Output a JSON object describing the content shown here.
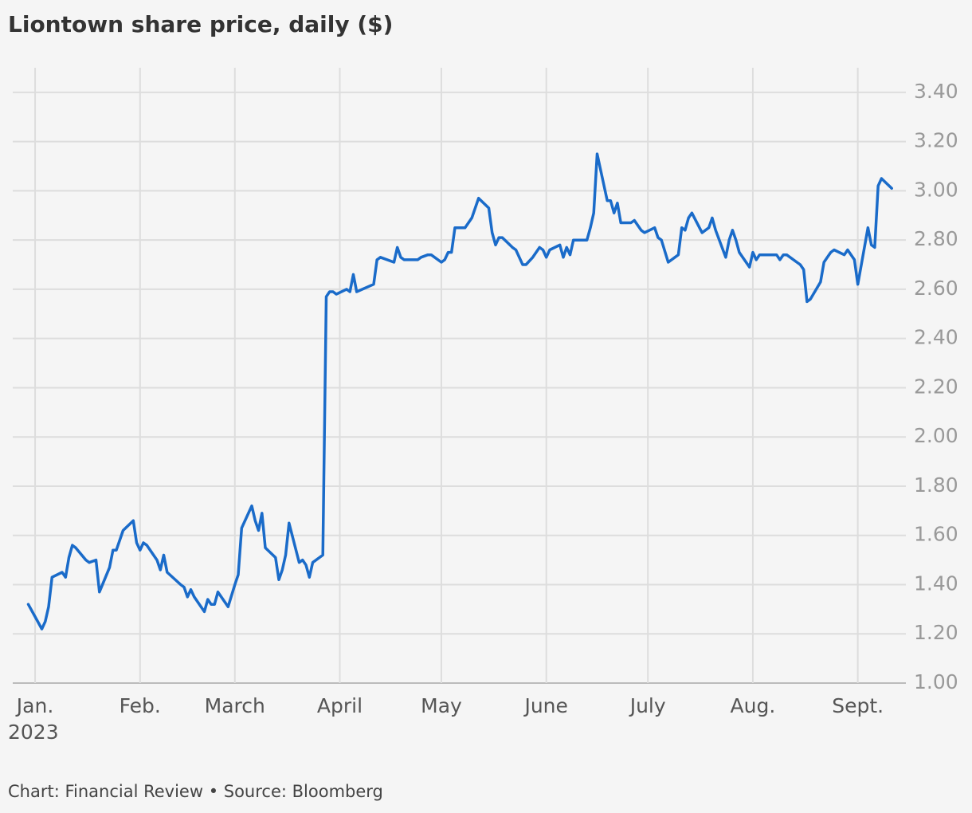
{
  "chart_data": {
    "type": "line",
    "title": "Liontown share price, daily ($)",
    "source": "Chart: Financial Review • Source: Bloomberg",
    "year_label": "2023",
    "color": "#1a6bc9",
    "grid": true,
    "y_axis_side": "right",
    "xlim": [
      -5.6,
      258.2
    ],
    "xticks": [
      {
        "value": 1,
        "label": "Jan."
      },
      {
        "value": 32,
        "label": "Feb."
      },
      {
        "value": 60,
        "label": "March"
      },
      {
        "value": 91,
        "label": "April"
      },
      {
        "value": 121,
        "label": "May"
      },
      {
        "value": 152,
        "label": "June"
      },
      {
        "value": 182,
        "label": "July"
      },
      {
        "value": 213,
        "label": "Aug."
      },
      {
        "value": 244,
        "label": "Sept."
      }
    ],
    "ylim": [
      1.0,
      3.5
    ],
    "yticks": [
      {
        "value": 1.0,
        "label": "1.00"
      },
      {
        "value": 1.2,
        "label": "1.20"
      },
      {
        "value": 1.4,
        "label": "1.40"
      },
      {
        "value": 1.6,
        "label": "1.60"
      },
      {
        "value": 1.8,
        "label": "1.80"
      },
      {
        "value": 2.0,
        "label": "2.00"
      },
      {
        "value": 2.2,
        "label": "2.20"
      },
      {
        "value": 2.4,
        "label": "2.40"
      },
      {
        "value": 2.6,
        "label": "2.60"
      },
      {
        "value": 2.8,
        "label": "2.80"
      },
      {
        "value": 3.0,
        "label": "3.00"
      },
      {
        "value": 3.2,
        "label": "3.20"
      },
      {
        "value": 3.4,
        "label": "3.40"
      }
    ],
    "x": [
      -1,
      3,
      4,
      5,
      6,
      9,
      10,
      11,
      12,
      13,
      16,
      17,
      19,
      20,
      23,
      24,
      25,
      27,
      30,
      31,
      32,
      33,
      34,
      37,
      38,
      39,
      40,
      44,
      45,
      46,
      47,
      48,
      51,
      52,
      53,
      54,
      55,
      58,
      60,
      61,
      62,
      65,
      66,
      67,
      68,
      69,
      72,
      73,
      74,
      75,
      76,
      79,
      80,
      81,
      82,
      83,
      86,
      87,
      88,
      89,
      90,
      93,
      94,
      95,
      96,
      101,
      102,
      103,
      107,
      108,
      109,
      110,
      114,
      115,
      117,
      118,
      121,
      122,
      123,
      124,
      125,
      128,
      130,
      132,
      135,
      136,
      137,
      138,
      139,
      142,
      143,
      145,
      146,
      148,
      150,
      151,
      152,
      153,
      156,
      157,
      158,
      159,
      160,
      164,
      165,
      166,
      167,
      170,
      171,
      172,
      173,
      174,
      177,
      178,
      180,
      181,
      184,
      185,
      186,
      188,
      191,
      192,
      193,
      194,
      195,
      198,
      200,
      201,
      202,
      205,
      206,
      207,
      208,
      209,
      212,
      213,
      214,
      215,
      220,
      221,
      222,
      223,
      226,
      227,
      228,
      229,
      230,
      233,
      234,
      235,
      236,
      237,
      240,
      241,
      243,
      244,
      247,
      248,
      249,
      250,
      251,
      254
    ],
    "values": [
      1.32,
      1.22,
      1.25,
      1.31,
      1.43,
      1.45,
      1.43,
      1.51,
      1.56,
      1.55,
      1.5,
      1.49,
      1.5,
      1.37,
      1.47,
      1.54,
      1.54,
      1.62,
      1.66,
      1.57,
      1.54,
      1.57,
      1.56,
      1.5,
      1.46,
      1.52,
      1.45,
      1.4,
      1.39,
      1.35,
      1.38,
      1.35,
      1.29,
      1.34,
      1.32,
      1.32,
      1.37,
      1.31,
      1.4,
      1.44,
      1.63,
      1.72,
      1.66,
      1.62,
      1.69,
      1.55,
      1.51,
      1.42,
      1.46,
      1.52,
      1.65,
      1.49,
      1.5,
      1.48,
      1.43,
      1.49,
      1.52,
      2.57,
      2.59,
      2.59,
      2.58,
      2.6,
      2.59,
      2.66,
      2.59,
      2.62,
      2.72,
      2.73,
      2.71,
      2.77,
      2.73,
      2.72,
      2.72,
      2.73,
      2.74,
      2.74,
      2.71,
      2.72,
      2.75,
      2.75,
      2.85,
      2.85,
      2.89,
      2.97,
      2.93,
      2.83,
      2.78,
      2.81,
      2.81,
      2.77,
      2.76,
      2.7,
      2.7,
      2.73,
      2.77,
      2.76,
      2.73,
      2.76,
      2.78,
      2.73,
      2.77,
      2.74,
      2.8,
      2.8,
      2.85,
      2.91,
      3.15,
      2.96,
      2.96,
      2.91,
      2.95,
      2.87,
      2.87,
      2.88,
      2.84,
      2.83,
      2.85,
      2.81,
      2.8,
      2.71,
      2.74,
      2.85,
      2.84,
      2.89,
      2.91,
      2.83,
      2.85,
      2.89,
      2.84,
      2.73,
      2.8,
      2.84,
      2.8,
      2.75,
      2.69,
      2.75,
      2.72,
      2.74,
      2.74,
      2.72,
      2.74,
      2.74,
      2.71,
      2.7,
      2.68,
      2.55,
      2.56,
      2.63,
      2.71,
      2.73,
      2.75,
      2.76,
      2.74,
      2.76,
      2.72,
      2.62,
      2.85,
      2.78,
      2.77,
      3.02,
      3.05,
      3.01
    ]
  }
}
